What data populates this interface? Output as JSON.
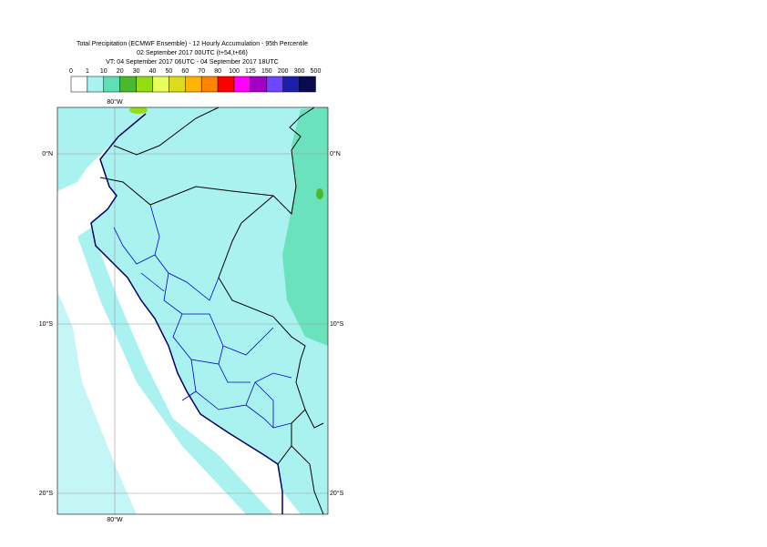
{
  "header": {
    "lines": [
      "Total Precipitation (ECMWF Ensemble) - 12 Hourly Accumulation - 95th Percentile",
      "02 September 2017 00UTC (t+54,t+66)",
      "VT: 04 September 2017 06UTC - 04 September 2017 18UTC"
    ]
  },
  "legend": {
    "labels": [
      "0",
      "1",
      "10",
      "20",
      "30",
      "40",
      "50",
      "60",
      "70",
      "80",
      "100",
      "125",
      "150",
      "200",
      "300",
      "500"
    ],
    "colors": [
      "#ffffff",
      "#aaf2f0",
      "#5fe0b4",
      "#4cb82c",
      "#96dc14",
      "#e6ff5a",
      "#dcdc1e",
      "#ffb400",
      "#ff8200",
      "#ff0000",
      "#ff00ff",
      "#a000c8",
      "#6e46ff",
      "#1e1eaa",
      "#0a0a50"
    ]
  },
  "map": {
    "lon_label": "80°W",
    "lat_labels": [
      "0°N",
      "10°S",
      "20°S"
    ]
  }
}
